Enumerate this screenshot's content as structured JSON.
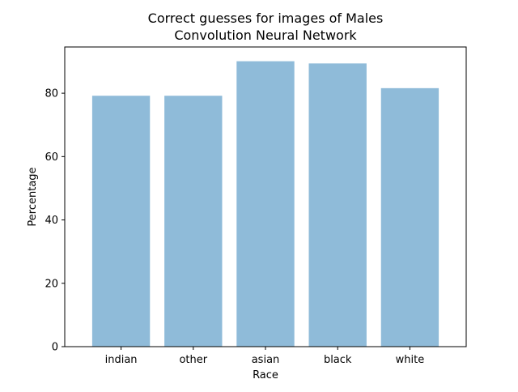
{
  "chart_data": {
    "type": "bar",
    "title": "Correct guesses for images of Males",
    "subtitle": "Convolution Neural Network",
    "xlabel": "Race",
    "ylabel": "Percentage",
    "categories": [
      "indian",
      "other",
      "asian",
      "black",
      "white"
    ],
    "values": [
      79.2,
      79.2,
      90.1,
      89.4,
      81.6
    ],
    "ylim": [
      0,
      94.6
    ],
    "yticks": [
      0,
      20,
      40,
      60,
      80
    ],
    "bar_color": "#8fbbd9",
    "grid": false,
    "legend": "none"
  }
}
